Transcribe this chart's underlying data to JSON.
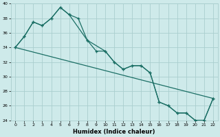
{
  "xlabel": "Humidex (Indice chaleur)",
  "bg_color": "#ceeaea",
  "grid_color": "#aacece",
  "line_color": "#1a6e64",
  "ylim": [
    24,
    40
  ],
  "xlim": [
    -0.5,
    22.5
  ],
  "yticks": [
    24,
    26,
    28,
    30,
    32,
    34,
    36,
    38,
    40
  ],
  "xticks": [
    0,
    1,
    2,
    3,
    4,
    5,
    6,
    7,
    8,
    9,
    10,
    11,
    12,
    13,
    14,
    15,
    16,
    17,
    18,
    19,
    20,
    21,
    22
  ],
  "line1_x": [
    0,
    1,
    2,
    3,
    4,
    5,
    6,
    7,
    8,
    9,
    10,
    11,
    12,
    13,
    14,
    15,
    16,
    17,
    18,
    19,
    20,
    21,
    22
  ],
  "line1_y": [
    34.0,
    35.5,
    37.5,
    37.0,
    38.0,
    39.5,
    38.5,
    38.0,
    35.0,
    33.5,
    33.5,
    32.0,
    31.0,
    31.5,
    31.5,
    30.5,
    26.5,
    26.0,
    25.0,
    25.0,
    24.0,
    24.0,
    27.0
  ],
  "line2_x": [
    0,
    1,
    2,
    3,
    4,
    5,
    6,
    8,
    10,
    11,
    12,
    13,
    14,
    15,
    16,
    17,
    18,
    19,
    20,
    21,
    22
  ],
  "line2_y": [
    34.0,
    35.5,
    37.5,
    37.0,
    38.0,
    39.5,
    38.5,
    35.0,
    33.5,
    32.0,
    31.0,
    31.5,
    31.5,
    30.5,
    26.5,
    26.0,
    25.0,
    25.0,
    24.0,
    24.0,
    27.0
  ],
  "line3_x": [
    0,
    22
  ],
  "line3_y": [
    34.0,
    27.0
  ]
}
